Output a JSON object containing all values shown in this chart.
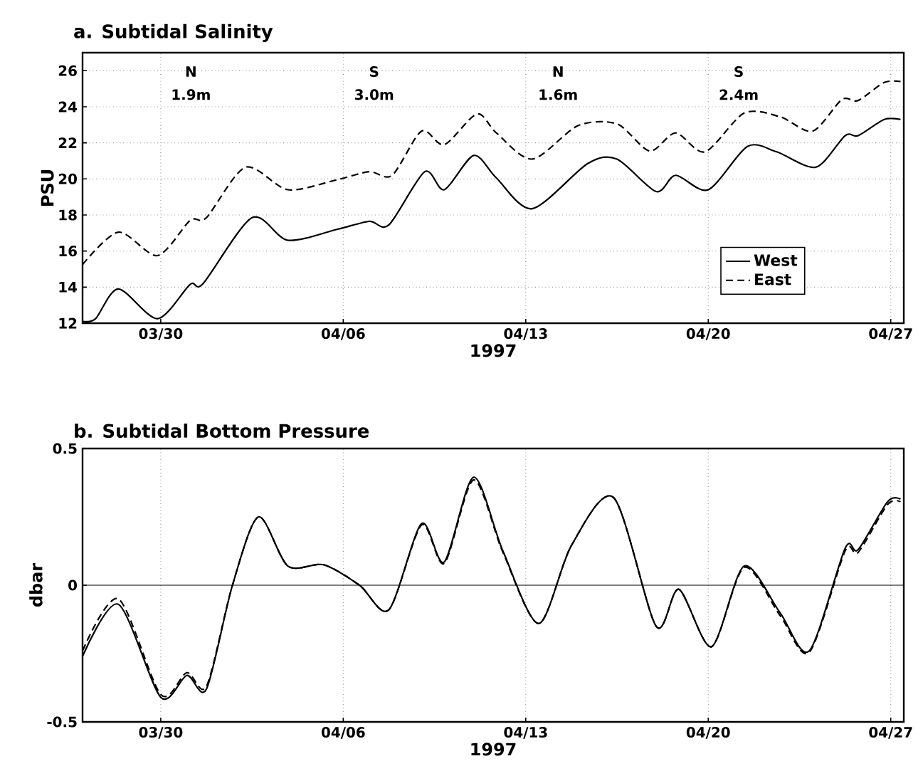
{
  "chart_data": [
    {
      "type": "line",
      "title": "a. Subtidal Salinity",
      "xlabel": "1997",
      "ylabel": "PSU",
      "xlim": [
        "1997-03-27T00:00",
        "1997-04-27T12:00"
      ],
      "xticks": [
        {
          "value": "1997-03-30",
          "label": "03/30"
        },
        {
          "value": "1997-04-06",
          "label": "04/06"
        },
        {
          "value": "1997-04-13",
          "label": "04/13"
        },
        {
          "value": "1997-04-20",
          "label": "04/20"
        },
        {
          "value": "1997-04-27",
          "label": "04/27"
        }
      ],
      "ylim": [
        12,
        27
      ],
      "yticks": [
        12,
        14,
        16,
        18,
        20,
        22,
        24,
        26
      ],
      "grid": true,
      "legend": "bottom right",
      "marker": "none",
      "series": [
        {
          "name": "West",
          "color": "#000000",
          "line_style": "solid",
          "x": [
            "1997-03-27T00:00",
            "1997-03-27T12:00",
            "1997-03-28T09:00",
            "1997-03-29T21:00",
            "1997-03-31T03:00",
            "1997-03-31T15:00",
            "1997-04-02T12:00",
            "1997-04-03T21:00",
            "1997-04-05T18:00",
            "1997-04-07T00:00",
            "1997-04-07T18:00",
            "1997-04-09T03:00",
            "1997-04-09T21:00",
            "1997-04-11T00:00",
            "1997-04-11T21:00",
            "1997-04-13T06:00",
            "1997-04-15T09:00",
            "1997-04-16T12:00",
            "1997-04-18T00:00",
            "1997-04-18T18:00",
            "1997-04-20T00:00",
            "1997-04-21T12:00",
            "1997-04-22T15:00",
            "1997-04-24T03:00",
            "1997-04-25T06:00",
            "1997-04-25T18:00",
            "1997-04-26T18:00",
            "1997-04-27T09:00"
          ],
          "values": [
            12.1,
            12.25,
            13.9,
            12.25,
            14.15,
            14.2,
            17.85,
            16.6,
            17.2,
            17.65,
            17.45,
            20.4,
            19.4,
            21.3,
            20.05,
            18.35,
            20.85,
            21.1,
            19.3,
            20.2,
            19.4,
            21.8,
            21.5,
            20.65,
            22.4,
            22.4,
            23.3,
            23.3
          ]
        },
        {
          "name": "East",
          "color": "#000000",
          "line_style": "dashed",
          "x": [
            "1997-03-27T00:00",
            "1997-03-28T09:00",
            "1997-03-29T21:00",
            "1997-03-31T03:00",
            "1997-03-31T18:00",
            "1997-04-02T06:00",
            "1997-04-03T21:00",
            "1997-04-05T18:00",
            "1997-04-07T00:00",
            "1997-04-07T21:00",
            "1997-04-09T00:00",
            "1997-04-09T21:00",
            "1997-04-11T03:00",
            "1997-04-11T21:00",
            "1997-04-13T06:00",
            "1997-04-15T00:00",
            "1997-04-16T12:00",
            "1997-04-17T18:00",
            "1997-04-18T18:00",
            "1997-04-19T21:00",
            "1997-04-21T09:00",
            "1997-04-22T18:00",
            "1997-04-24T00:00",
            "1997-04-25T03:00",
            "1997-04-25T18:00",
            "1997-04-26T18:00",
            "1997-04-27T09:00"
          ],
          "values": [
            15.25,
            17.05,
            15.75,
            17.7,
            17.85,
            20.65,
            19.4,
            19.95,
            20.4,
            20.2,
            22.65,
            21.9,
            23.6,
            22.55,
            21.1,
            22.95,
            23.05,
            21.55,
            22.55,
            21.5,
            23.65,
            23.45,
            22.65,
            24.4,
            24.35,
            25.35,
            25.4
          ]
        }
      ],
      "annotations": [
        "N",
        "1.9m",
        "S",
        "3.0m",
        "N",
        "1.6m",
        "S",
        "2.4m"
      ]
    },
    {
      "type": "line",
      "title": "b. Subtidal Bottom Pressure",
      "xlabel": "1997",
      "ylabel": "dbar",
      "xlim": [
        "1997-03-27T00:00",
        "1997-04-27T12:00"
      ],
      "xticks": [
        {
          "value": "1997-03-30",
          "label": "03/30"
        },
        {
          "value": "1997-04-06",
          "label": "04/06"
        },
        {
          "value": "1997-04-13",
          "label": "04/13"
        },
        {
          "value": "1997-04-20",
          "label": "04/20"
        },
        {
          "value": "1997-04-27",
          "label": "04/27"
        }
      ],
      "ylim": [
        -0.5,
        0.5
      ],
      "yticks": [
        -0.5,
        0,
        0.5
      ],
      "grid": "x",
      "marker": "none",
      "ref_lines": [
        {
          "axis": "y",
          "value": 0,
          "color": "#000000",
          "line_style": "solid"
        }
      ],
      "series": [
        {
          "color": "#000000",
          "line_style": "solid",
          "x": [
            "1997-03-27T00:00",
            "1997-03-28T09:00",
            "1997-03-30T00:00",
            "1997-03-31T00:00",
            "1997-03-31T18:00",
            "1997-04-01T18:00",
            "1997-04-02T18:00",
            "1997-04-03T21:00",
            "1997-04-05T06:00",
            "1997-04-06T15:00",
            "1997-04-07T18:00",
            "1997-04-09T00:00",
            "1997-04-09T21:00",
            "1997-04-11T00:00",
            "1997-04-12T03:00",
            "1997-04-13T12:00",
            "1997-04-14T18:00",
            "1997-04-16T09:00",
            "1997-04-18T00:00",
            "1997-04-18T21:00",
            "1997-04-20T03:00",
            "1997-04-21T09:00",
            "1997-04-22T18:00",
            "1997-04-23T21:00",
            "1997-04-25T06:00",
            "1997-04-25T18:00",
            "1997-04-26T21:00",
            "1997-04-27T09:00"
          ],
          "values": [
            -0.26,
            -0.07,
            -0.41,
            -0.33,
            -0.38,
            0.0,
            0.25,
            0.07,
            0.075,
            0.0,
            -0.09,
            0.225,
            0.085,
            0.395,
            0.125,
            -0.14,
            0.145,
            0.32,
            -0.15,
            -0.015,
            -0.225,
            0.07,
            -0.1,
            -0.24,
            0.135,
            0.13,
            0.305,
            0.315
          ]
        },
        {
          "color": "#000000",
          "line_style": "dashed",
          "x": [
            "1997-03-27T00:00",
            "1997-03-28T09:00",
            "1997-03-30T00:00",
            "1997-03-31T00:00",
            "1997-03-31T18:00",
            "1997-04-01T18:00",
            "1997-04-02T18:00",
            "1997-04-03T21:00",
            "1997-04-05T06:00",
            "1997-04-06T15:00",
            "1997-04-07T18:00",
            "1997-04-09T00:00",
            "1997-04-09T21:00",
            "1997-04-11T00:00",
            "1997-04-12T03:00",
            "1997-04-13T12:00",
            "1997-04-14T18:00",
            "1997-04-16T09:00",
            "1997-04-18T00:00",
            "1997-04-18T21:00",
            "1997-04-20T03:00",
            "1997-04-21T09:00",
            "1997-04-22T18:00",
            "1997-04-23T21:00",
            "1997-04-25T06:00",
            "1997-04-25T18:00",
            "1997-04-26T21:00",
            "1997-04-27T09:00"
          ],
          "values": [
            -0.24,
            -0.05,
            -0.4,
            -0.32,
            -0.37,
            0.0,
            0.25,
            0.07,
            0.075,
            0.0,
            -0.09,
            0.22,
            0.08,
            0.385,
            0.12,
            -0.14,
            0.145,
            0.32,
            -0.15,
            -0.015,
            -0.225,
            0.065,
            -0.11,
            -0.245,
            0.125,
            0.12,
            0.295,
            0.305
          ]
        }
      ]
    }
  ]
}
